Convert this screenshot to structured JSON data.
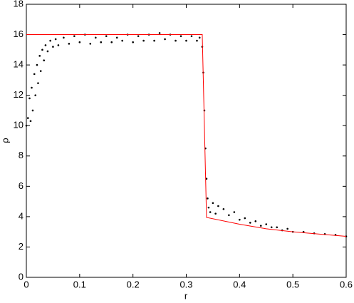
{
  "chart_data": {
    "type": "scatter",
    "xlabel": "r",
    "ylabel": "ρ",
    "xlim": [
      0,
      0.6
    ],
    "xticks": [
      0,
      0.1,
      0.2,
      0.3,
      0.4,
      0.5,
      0.6
    ],
    "ylim": [
      0,
      18
    ],
    "yticks": [
      0,
      2,
      4,
      6,
      8,
      10,
      12,
      14,
      16,
      18
    ],
    "series": [
      {
        "color": "#000000",
        "line": false,
        "x": [
          0,
          0.003,
          0.006,
          0.008,
          0.01,
          0.012,
          0.015,
          0.017,
          0.02,
          0.022,
          0.025,
          0.027,
          0.03,
          0.033,
          0.036,
          0.04,
          0.045,
          0.05,
          0.055,
          0.06,
          0.07,
          0.08,
          0.09,
          0.1,
          0.11,
          0.12,
          0.13,
          0.14,
          0.15,
          0.16,
          0.17,
          0.18,
          0.19,
          0.2,
          0.21,
          0.22,
          0.23,
          0.24,
          0.25,
          0.26,
          0.27,
          0.28,
          0.29,
          0.3,
          0.31,
          0.32,
          0.325,
          0.33,
          0.332,
          0.334,
          0.336,
          0.338,
          0.34,
          0.342,
          0.345,
          0.35,
          0.355,
          0.36,
          0.37,
          0.38,
          0.39,
          0.4,
          0.41,
          0.42,
          0.43,
          0.44,
          0.45,
          0.46,
          0.47,
          0.48,
          0.49,
          0.5,
          0.52,
          0.54,
          0.56,
          0.58,
          0.6
        ],
        "values": [
          10.0,
          10.5,
          11.8,
          10.3,
          12.5,
          11.0,
          13.4,
          12.0,
          14.0,
          12.8,
          14.6,
          13.6,
          15.0,
          14.3,
          15.3,
          14.9,
          15.6,
          15.2,
          15.7,
          15.3,
          15.8,
          15.4,
          15.9,
          15.5,
          16.0,
          15.4,
          15.8,
          15.5,
          15.9,
          15.5,
          15.8,
          15.6,
          16.0,
          15.5,
          15.9,
          15.6,
          16.0,
          15.6,
          16.1,
          15.7,
          16.0,
          15.6,
          15.9,
          15.6,
          15.9,
          15.6,
          15.8,
          15.2,
          13.5,
          11.0,
          8.5,
          6.5,
          5.2,
          4.6,
          4.3,
          4.9,
          4.2,
          4.7,
          4.5,
          4.1,
          4.3,
          3.8,
          3.9,
          3.6,
          3.7,
          3.4,
          3.5,
          3.3,
          3.3,
          3.1,
          3.2,
          3.0,
          3.0,
          2.9,
          2.85,
          2.8,
          2.7
        ]
      },
      {
        "color": "#ff0000",
        "line": true,
        "x": [
          0,
          0.33,
          0.338,
          0.4,
          0.45,
          0.5,
          0.55,
          0.6
        ],
        "values": [
          16,
          16,
          3.95,
          3.5,
          3.2,
          3.0,
          2.85,
          2.7
        ]
      }
    ]
  }
}
